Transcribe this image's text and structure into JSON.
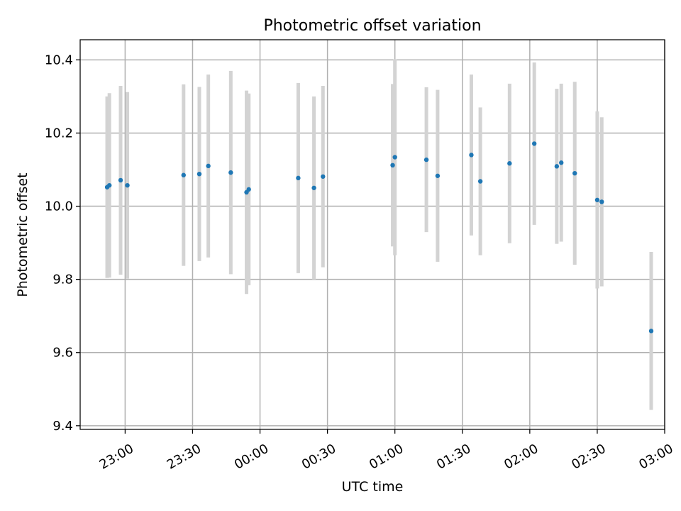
{
  "chart_data": {
    "type": "scatter",
    "title": "Photometric offset variation",
    "xlabel": "UTC time",
    "ylabel": "Photometric offset",
    "x_unit": "UTC time (HH:MM)",
    "xlim": [
      "22:40",
      "03:00"
    ],
    "ylim": [
      9.39,
      10.455
    ],
    "x_ticks": [
      "23:00",
      "23:30",
      "00:00",
      "00:30",
      "01:00",
      "01:30",
      "02:00",
      "02:30",
      "03:00"
    ],
    "y_ticks": [
      9.4,
      9.6,
      9.8,
      10.0,
      10.2,
      10.4
    ],
    "grid": true,
    "points": [
      {
        "x": "22:52",
        "y": 10.052,
        "err": 0.248
      },
      {
        "x": "22:53",
        "y": 10.057,
        "err": 0.252
      },
      {
        "x": "22:58",
        "y": 10.071,
        "err": 0.258
      },
      {
        "x": "23:01",
        "y": 10.057,
        "err": 0.255
      },
      {
        "x": "23:26",
        "y": 10.085,
        "err": 0.248
      },
      {
        "x": "23:33",
        "y": 10.088,
        "err": 0.238
      },
      {
        "x": "23:37",
        "y": 10.11,
        "err": 0.25
      },
      {
        "x": "23:47",
        "y": 10.092,
        "err": 0.278
      },
      {
        "x": "23:54",
        "y": 10.038,
        "err": 0.278
      },
      {
        "x": "23:55",
        "y": 10.046,
        "err": 0.262
      },
      {
        "x": "00:17",
        "y": 10.077,
        "err": 0.26
      },
      {
        "x": "00:24",
        "y": 10.05,
        "err": 0.25
      },
      {
        "x": "00:28",
        "y": 10.081,
        "err": 0.248
      },
      {
        "x": "00:59",
        "y": 10.112,
        "err": 0.222
      },
      {
        "x": "01:00",
        "y": 10.134,
        "err": 0.268
      },
      {
        "x": "01:14",
        "y": 10.127,
        "err": 0.198
      },
      {
        "x": "01:19",
        "y": 10.083,
        "err": 0.235
      },
      {
        "x": "01:34",
        "y": 10.14,
        "err": 0.22
      },
      {
        "x": "01:38",
        "y": 10.068,
        "err": 0.202
      },
      {
        "x": "01:51",
        "y": 10.117,
        "err": 0.218
      },
      {
        "x": "02:02",
        "y": 10.171,
        "err": 0.222
      },
      {
        "x": "02:12",
        "y": 10.109,
        "err": 0.212
      },
      {
        "x": "02:14",
        "y": 10.119,
        "err": 0.216
      },
      {
        "x": "02:20",
        "y": 10.09,
        "err": 0.25
      },
      {
        "x": "02:30",
        "y": 10.017,
        "err": 0.242
      },
      {
        "x": "02:32",
        "y": 10.012,
        "err": 0.231
      },
      {
        "x": "02:54",
        "y": 9.659,
        "err": 0.216
      }
    ],
    "marker_color": "#1f77b4",
    "errorbar_color": "#d3d3d3",
    "grid_color": "#b0b0b0"
  }
}
